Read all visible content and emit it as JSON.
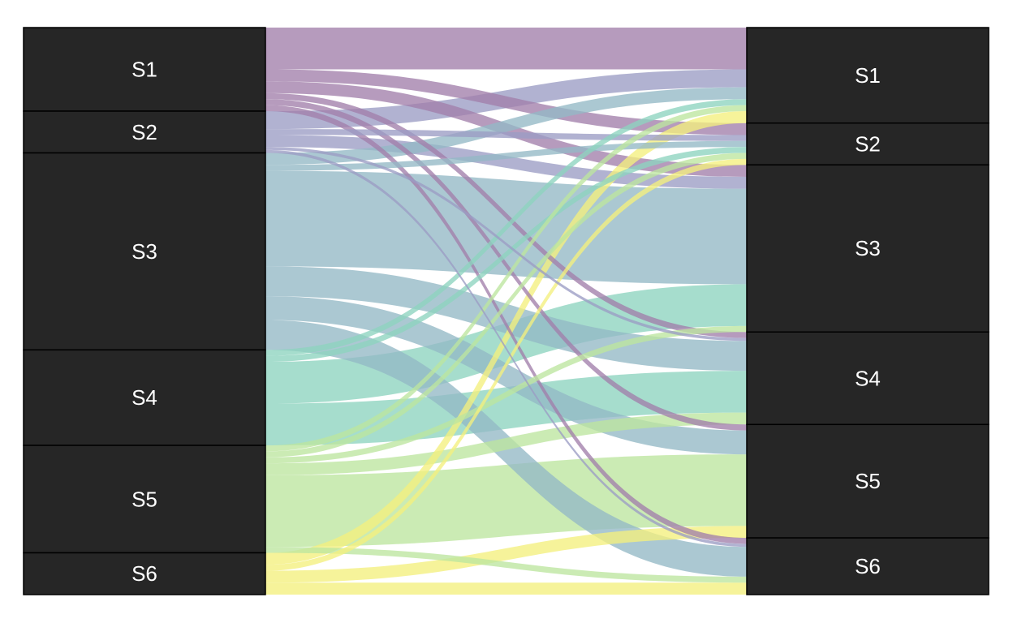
{
  "chart_data": {
    "type": "alluvial",
    "left_axis": [
      "S1",
      "S2",
      "S3",
      "S4",
      "S5",
      "S6"
    ],
    "right_axis": [
      "S1",
      "S2",
      "S3",
      "S4",
      "S5",
      "S6"
    ],
    "node_fill": "#262626",
    "palette": {
      "S1": "#a27faa",
      "S2": "#9b9cc4",
      "S3": "#94b8c5",
      "S4": "#8dd3bf",
      "S5": "#bde59f",
      "S6": "#f4ef7e"
    },
    "flows": [
      {
        "from": "S1",
        "to": "S1",
        "value": 7
      },
      {
        "from": "S1",
        "to": "S2",
        "value": 2
      },
      {
        "from": "S1",
        "to": "S3",
        "value": 2
      },
      {
        "from": "S1",
        "to": "S4",
        "value": 1
      },
      {
        "from": "S1",
        "to": "S5",
        "value": 1
      },
      {
        "from": "S1",
        "to": "S6",
        "value": 1
      },
      {
        "from": "S2",
        "to": "S1",
        "value": 3
      },
      {
        "from": "S2",
        "to": "S2",
        "value": 1
      },
      {
        "from": "S2",
        "to": "S3",
        "value": 2
      },
      {
        "from": "S2",
        "to": "S4",
        "value": 0.5
      },
      {
        "from": "S2",
        "to": "S6",
        "value": 0.5
      },
      {
        "from": "S3",
        "to": "S1",
        "value": 2
      },
      {
        "from": "S3",
        "to": "S2",
        "value": 1
      },
      {
        "from": "S3",
        "to": "S3",
        "value": 16
      },
      {
        "from": "S3",
        "to": "S4",
        "value": 5
      },
      {
        "from": "S3",
        "to": "S5",
        "value": 4
      },
      {
        "from": "S3",
        "to": "S6",
        "value": 5
      },
      {
        "from": "S4",
        "to": "S1",
        "value": 1
      },
      {
        "from": "S4",
        "to": "S2",
        "value": 1
      },
      {
        "from": "S4",
        "to": "S3",
        "value": 7
      },
      {
        "from": "S4",
        "to": "S4",
        "value": 7
      },
      {
        "from": "S5",
        "to": "S1",
        "value": 1
      },
      {
        "from": "S5",
        "to": "S2",
        "value": 1
      },
      {
        "from": "S5",
        "to": "S3",
        "value": 1
      },
      {
        "from": "S5",
        "to": "S4",
        "value": 2
      },
      {
        "from": "S5",
        "to": "S5",
        "value": 12
      },
      {
        "from": "S5",
        "to": "S6",
        "value": 1
      },
      {
        "from": "S6",
        "to": "S1",
        "value": 2
      },
      {
        "from": "S6",
        "to": "S2",
        "value": 1
      },
      {
        "from": "S6",
        "to": "S5",
        "value": 2
      },
      {
        "from": "S6",
        "to": "S6",
        "value": 2
      }
    ]
  }
}
